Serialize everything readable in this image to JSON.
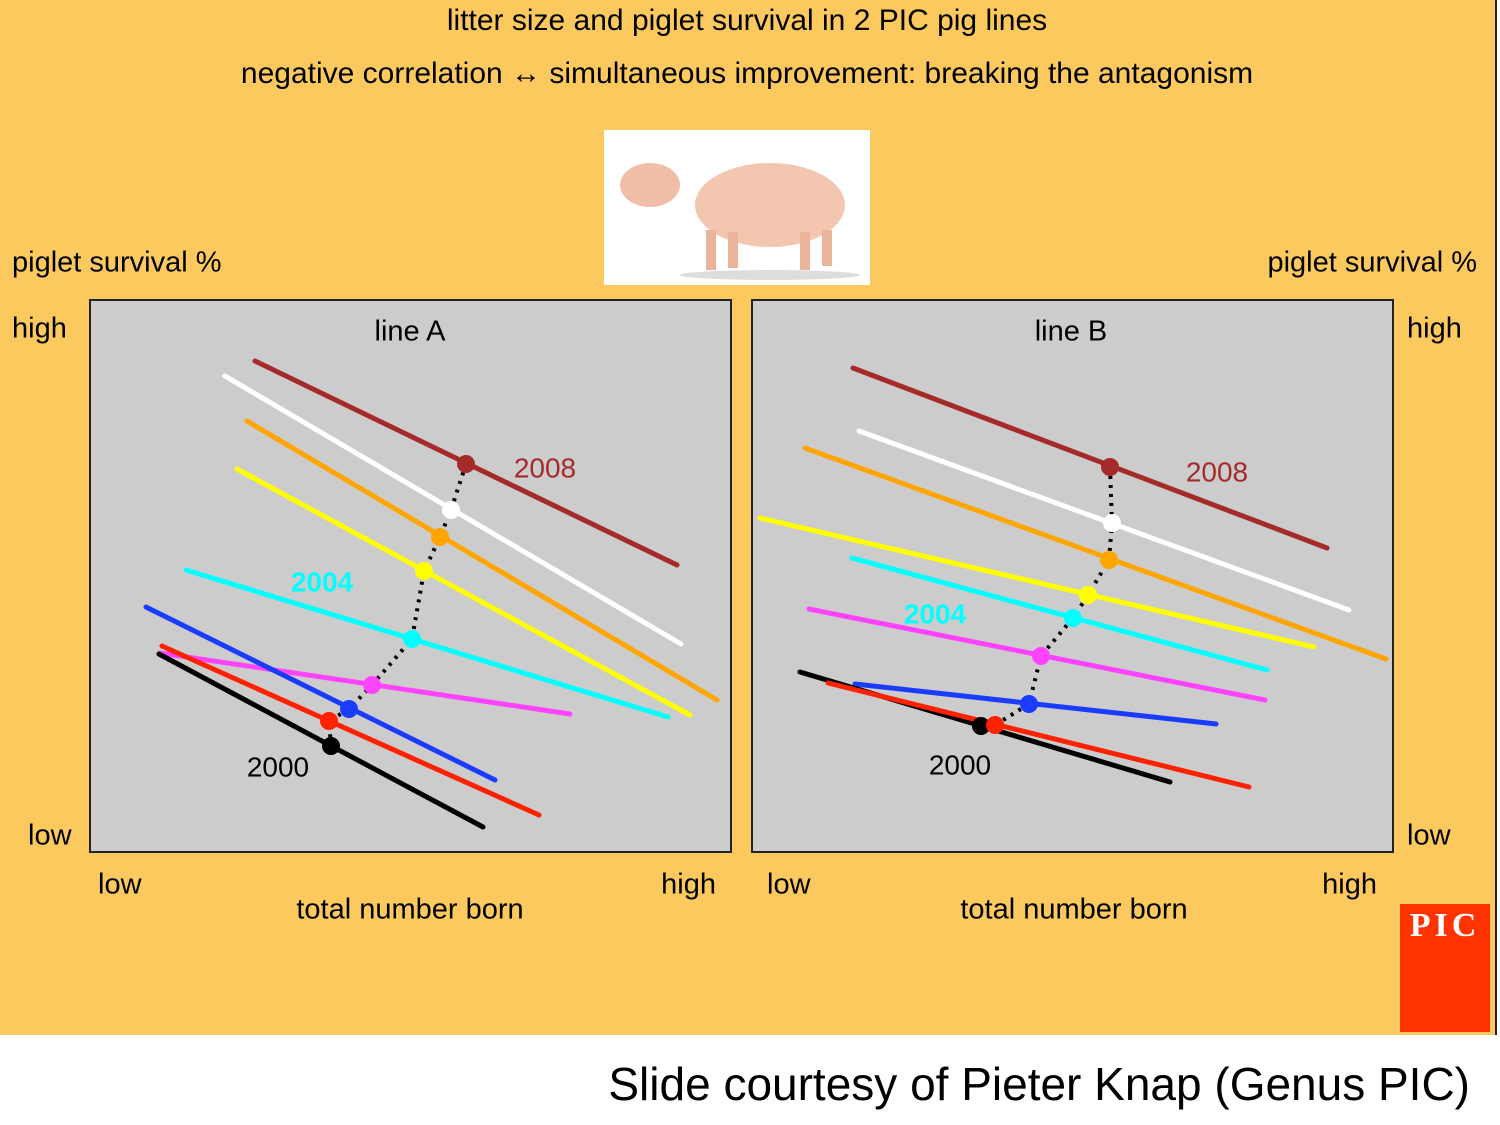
{
  "header": {
    "title": "litter size and piglet survival in 2 PIC pig lines",
    "subtitle": "negative correlation ↔ simultaneous improvement: breaking the antagonism"
  },
  "panels": [
    {
      "title": "line A",
      "y_label": "piglet survival %",
      "y_high": "high",
      "y_low": "low",
      "x_low": "low",
      "x_high": "high",
      "x_label": "total number born",
      "year_labels": [
        "2008",
        "2004",
        "2000"
      ]
    },
    {
      "title": "line B",
      "y_label": "piglet survival %",
      "y_high": "high",
      "y_low": "low",
      "x_low": "low",
      "x_high": "high",
      "x_label": "total number born",
      "year_labels": [
        "2008",
        "2004",
        "2000"
      ]
    }
  ],
  "logo": "PIC",
  "credit": "Slide courtesy of Pieter Knap (Genus PIC)"
}
